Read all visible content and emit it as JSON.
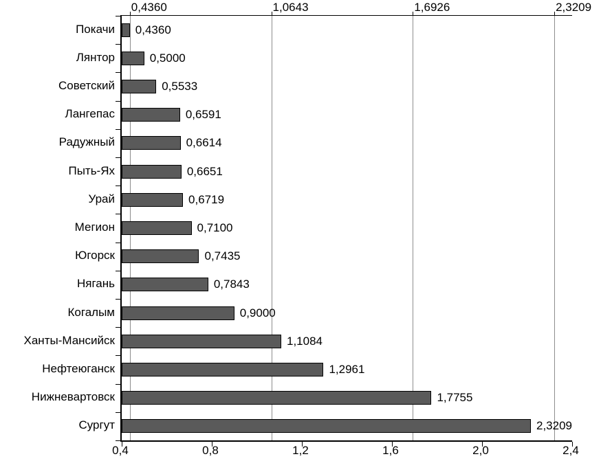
{
  "chart_data": {
    "type": "bar",
    "orientation": "horizontal",
    "title": "",
    "categories": [
      "Покачи",
      "Лянтор",
      "Советский",
      "Лангепас",
      "Радужный",
      "Пыть-Ях",
      "Урай",
      "Мегион",
      "Югорск",
      "Нягань",
      "Когалым",
      "Ханты-Мансийск",
      "Нефтеюганск",
      "Нижневартовск",
      "Сургут"
    ],
    "values": [
      0.436,
      0.5,
      0.5533,
      0.6591,
      0.6614,
      0.6651,
      0.6719,
      0.71,
      0.7435,
      0.7843,
      0.9,
      1.1084,
      1.2961,
      1.7755,
      2.3209
    ],
    "value_labels": [
      "0,4360",
      "0,5000",
      "0,5533",
      "0,6591",
      "0,6614",
      "0,6651",
      "0,6719",
      "0,7100",
      "0,7435",
      "0,7843",
      "0,9000",
      "1,1084",
      "1,2961",
      "1,7755",
      "2,3209"
    ],
    "xlim": [
      0.4,
      2.4
    ],
    "grid": true,
    "legend": false,
    "top_axis": {
      "ticks": [
        0.436,
        1.0643,
        1.6926,
        2.3209
      ],
      "labels": [
        "0,4360",
        "1,0643",
        "1,6926",
        "2,3209"
      ]
    },
    "bottom_axis": {
      "ticks": [
        0.4,
        0.8,
        1.2,
        1.6,
        2.0,
        2.4
      ],
      "labels": [
        "0,4",
        "0,8",
        "1,2",
        "1,6",
        "2,0",
        "2,4"
      ]
    },
    "colors": {
      "bar_fill": "#5a5a5a",
      "bar_border": "#000000",
      "gridline": "#8c8c8c",
      "axis": "#000000",
      "text": "#000000",
      "background": "#ffffff"
    }
  }
}
